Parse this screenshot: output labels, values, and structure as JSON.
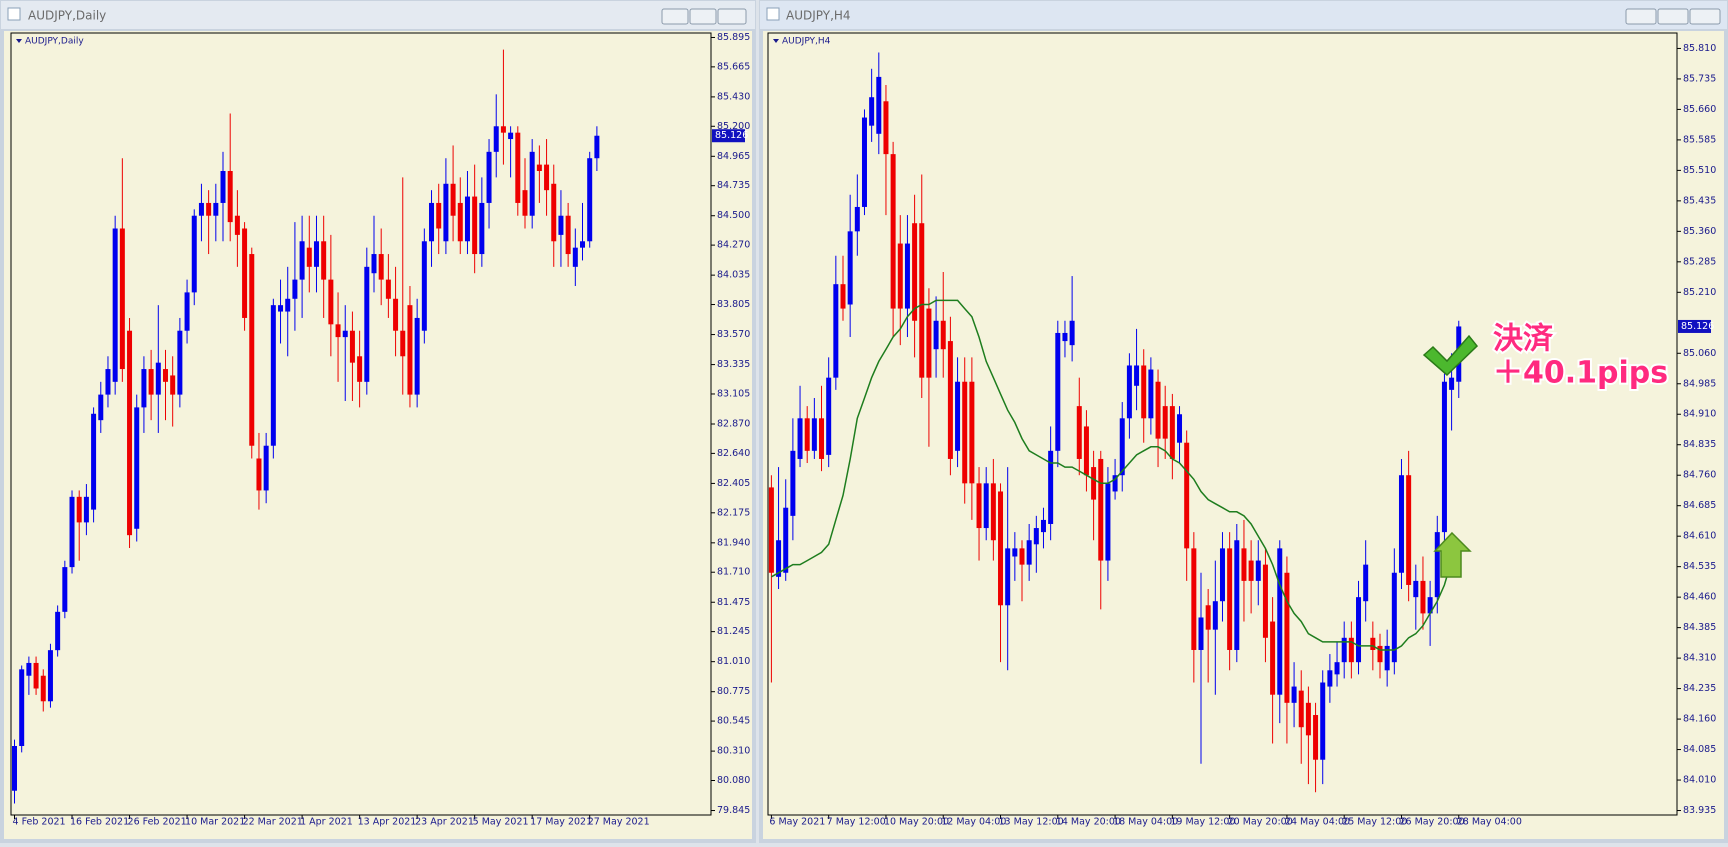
{
  "chart_data": [
    {
      "type": "candlestick",
      "title": "AUDJPY,Daily",
      "categories": [
        "4 Feb 2021",
        null,
        null,
        null,
        null,
        null,
        null,
        null,
        "16 Feb 2021",
        null,
        null,
        null,
        null,
        null,
        null,
        null,
        "26 Feb 2021",
        null,
        null,
        null,
        null,
        null,
        null,
        null,
        "10 Mar 2021",
        null,
        null,
        null,
        null,
        null,
        null,
        null,
        "22 Mar 2021",
        null,
        null,
        null,
        null,
        null,
        null,
        null,
        "1 Apr 2021",
        null,
        null,
        null,
        null,
        null,
        null,
        null,
        "13 Apr 2021",
        null,
        null,
        null,
        null,
        null,
        null,
        null,
        "23 Apr 2021",
        null,
        null,
        null,
        null,
        null,
        null,
        null,
        "5 May 2021",
        null,
        null,
        null,
        null,
        null,
        null,
        null,
        "17 May 2021",
        null,
        null,
        null,
        null,
        null,
        null,
        null,
        "27 May 2021",
        null
      ],
      "open": [
        80.0,
        80.35,
        80.9,
        81.0,
        80.9,
        80.7,
        81.1,
        81.4,
        81.75,
        82.3,
        82.1,
        82.2,
        82.9,
        83.1,
        83.2,
        84.4,
        83.6,
        82.05,
        83.0,
        83.3,
        83.1,
        83.3,
        83.25,
        83.1,
        83.6,
        83.9,
        84.5,
        84.6,
        84.5,
        84.6,
        84.85,
        84.5,
        84.4,
        84.2,
        82.6,
        82.35,
        82.7,
        83.75,
        83.75,
        83.85,
        84.0,
        84.25,
        84.1,
        84.3,
        84.0,
        83.65,
        83.55,
        83.6,
        83.4,
        83.2,
        84.05,
        84.2,
        84.0,
        83.85,
        83.6,
        83.8,
        83.1,
        83.6,
        84.3,
        84.6,
        84.3,
        84.75,
        84.6,
        84.3,
        84.65,
        84.2,
        84.6,
        85.0,
        85.2,
        85.1,
        85.15,
        84.7,
        84.5,
        84.9,
        84.9,
        84.75,
        84.35,
        84.5,
        84.1,
        84.25,
        84.3,
        84.95
      ],
      "high": [
        80.4,
        80.98,
        81.05,
        81.05,
        80.95,
        81.15,
        81.45,
        81.8,
        82.35,
        82.35,
        82.4,
        83.0,
        83.2,
        83.4,
        84.5,
        84.95,
        83.7,
        83.1,
        83.4,
        83.45,
        83.8,
        83.45,
        83.4,
        83.7,
        84.0,
        84.55,
        84.75,
        84.7,
        84.75,
        85.0,
        85.3,
        84.7,
        84.45,
        84.25,
        82.8,
        82.8,
        83.85,
        84.0,
        84.1,
        84.45,
        84.5,
        84.5,
        84.5,
        84.5,
        84.35,
        83.9,
        83.8,
        83.75,
        83.6,
        84.25,
        84.5,
        84.4,
        84.2,
        84.1,
        84.8,
        83.95,
        83.85,
        84.4,
        84.7,
        84.75,
        84.95,
        85.05,
        84.8,
        84.85,
        84.9,
        84.8,
        85.1,
        85.45,
        85.8,
        85.2,
        85.2,
        84.95,
        85.1,
        85.05,
        85.1,
        84.9,
        84.7,
        84.6,
        84.4,
        84.6,
        85.0,
        85.2
      ],
      "low": [
        79.9,
        80.3,
        80.75,
        80.75,
        80.62,
        80.65,
        81.05,
        81.35,
        81.7,
        81.8,
        82.0,
        82.1,
        82.8,
        83.0,
        83.1,
        83.2,
        81.9,
        81.95,
        82.8,
        82.9,
        82.8,
        82.9,
        82.85,
        83.0,
        83.5,
        83.8,
        84.3,
        84.2,
        84.3,
        84.3,
        84.3,
        84.1,
        83.6,
        82.6,
        82.2,
        82.25,
        82.6,
        83.5,
        83.4,
        83.6,
        83.7,
        83.9,
        83.9,
        83.7,
        83.4,
        83.2,
        83.05,
        83.05,
        83.0,
        83.1,
        83.9,
        83.8,
        83.7,
        83.4,
        83.1,
        83.0,
        83.0,
        83.5,
        84.1,
        84.2,
        84.2,
        84.3,
        84.2,
        84.2,
        84.05,
        84.1,
        84.4,
        84.8,
        84.9,
        84.8,
        84.5,
        84.4,
        84.4,
        84.6,
        84.5,
        84.1,
        84.1,
        84.1,
        83.95,
        84.15,
        84.25,
        84.85
      ],
      "close": [
        80.35,
        80.95,
        81.0,
        80.8,
        80.7,
        81.1,
        81.4,
        81.75,
        82.3,
        82.1,
        82.3,
        82.95,
        83.1,
        83.3,
        84.4,
        83.3,
        82.0,
        83.0,
        83.3,
        83.1,
        83.35,
        83.2,
        83.1,
        83.6,
        83.9,
        84.5,
        84.6,
        84.5,
        84.6,
        84.85,
        84.45,
        84.35,
        83.7,
        82.7,
        82.35,
        82.7,
        83.8,
        83.8,
        83.85,
        84.0,
        84.3,
        84.1,
        84.3,
        84.0,
        83.65,
        83.55,
        83.6,
        83.35,
        83.2,
        84.1,
        84.2,
        84.0,
        83.85,
        83.6,
        83.4,
        83.1,
        83.7,
        84.3,
        84.6,
        84.4,
        84.75,
        84.5,
        84.3,
        84.65,
        84.2,
        84.6,
        85.0,
        85.2,
        85.15,
        85.15,
        84.6,
        84.5,
        85.0,
        84.85,
        84.7,
        84.3,
        84.5,
        84.2,
        84.25,
        84.3,
        84.95,
        85.126
      ],
      "ylim": [
        79.81,
        85.93
      ],
      "yticks": [
        85.895,
        85.665,
        {
          "value": 85.43,
          "label": "85.430"
        },
        {
          "value": 85.2,
          "label": "85.200"
        },
        84.965,
        84.735,
        {
          "value": 84.5,
          "label": "84.500"
        },
        {
          "value": 84.27,
          "label": "84.270"
        },
        84.035,
        83.805,
        {
          "value": 83.57,
          "label": "83.570"
        },
        83.335,
        83.105,
        {
          "value": 82.87,
          "label": "82.870"
        },
        {
          "value": 82.64,
          "label": "82.640"
        },
        82.405,
        82.175,
        {
          "value": 81.94,
          "label": "81.940"
        },
        {
          "value": 81.71,
          "label": "81.710"
        },
        81.475,
        81.245,
        {
          "value": 81.01,
          "label": "81.010"
        },
        80.775,
        80.545,
        {
          "value": 80.31,
          "label": "80.310"
        },
        {
          "value": 80.08,
          "label": "80.080"
        },
        79.845
      ],
      "current_price": 85.126,
      "up_color": "#0000ee",
      "down_color": "#ee0000",
      "background": "#f5f3dc"
    },
    {
      "type": "candlestick",
      "title": "AUDJPY,H4",
      "categories": [
        "6 May 2021",
        null,
        null,
        null,
        null,
        null,
        null,
        null,
        "7 May 12:00",
        null,
        null,
        null,
        null,
        null,
        null,
        null,
        "10 May 20:00",
        null,
        null,
        null,
        null,
        null,
        null,
        null,
        "12 May 04:00",
        null,
        null,
        null,
        null,
        null,
        null,
        null,
        "13 May 12:00",
        null,
        null,
        null,
        null,
        null,
        null,
        null,
        "14 May 20:00",
        null,
        null,
        null,
        null,
        null,
        null,
        null,
        "18 May 04:00",
        null,
        null,
        null,
        null,
        null,
        null,
        null,
        "19 May 12:00",
        null,
        null,
        null,
        null,
        null,
        null,
        null,
        "20 May 20:00",
        null,
        null,
        null,
        null,
        null,
        null,
        null,
        "24 May 04:00",
        null,
        null,
        null,
        null,
        null,
        null,
        null,
        "25 May 12:00",
        null,
        null,
        null,
        null,
        null,
        null,
        null,
        "26 May 20:00",
        null,
        null,
        null,
        null,
        null,
        null,
        null,
        "28 May 04:00"
      ],
      "open": [
        84.73,
        84.51,
        84.52,
        84.66,
        84.8,
        84.9,
        84.82,
        84.9,
        84.81,
        85.0,
        85.23,
        85.18,
        85.36,
        85.42,
        85.62,
        85.6,
        85.68,
        85.55,
        85.33,
        85.17,
        85.38,
        85.38,
        85.17,
        85.07,
        85.14,
        85.09,
        84.82,
        84.99,
        84.99,
        84.74,
        84.63,
        84.74,
        84.72,
        84.44,
        84.56,
        84.58,
        84.54,
        84.59,
        84.62,
        84.64,
        84.82,
        85.09,
        85.08,
        84.93,
        84.88,
        84.78,
        84.8,
        84.55,
        84.72,
        84.76,
        84.9,
        84.98,
        85.03,
        84.9,
        84.99,
        84.93,
        84.93,
        84.84,
        84.84,
        84.58,
        84.33,
        84.44,
        84.38,
        84.45,
        84.58,
        84.33,
        84.58,
        84.55,
        84.5,
        84.54,
        84.4,
        84.22,
        84.52,
        84.2,
        84.23,
        84.2,
        84.17,
        84.06,
        84.24,
        84.27,
        84.3,
        84.36,
        84.3,
        84.45,
        84.36,
        84.34,
        84.28,
        84.3,
        84.52,
        84.76,
        84.46,
        84.5,
        84.42,
        84.46,
        84.62,
        84.97,
        84.99
      ],
      "high": [
        84.76,
        84.78,
        84.75,
        84.9,
        84.98,
        84.93,
        84.95,
        84.98,
        85.05,
        85.3,
        85.3,
        85.45,
        85.5,
        85.66,
        85.76,
        85.8,
        85.72,
        85.58,
        85.4,
        85.4,
        85.45,
        85.5,
        85.22,
        85.2,
        85.26,
        85.15,
        85.05,
        85.05,
        85.05,
        84.78,
        84.78,
        84.8,
        84.74,
        84.78,
        84.62,
        84.6,
        84.64,
        84.66,
        84.68,
        84.88,
        85.14,
        85.14,
        85.25,
        85.0,
        84.92,
        84.82,
        84.82,
        84.78,
        84.8,
        84.94,
        85.06,
        85.12,
        85.07,
        85.05,
        85.02,
        84.98,
        84.96,
        84.93,
        84.87,
        84.62,
        84.52,
        84.48,
        84.55,
        84.62,
        84.62,
        84.64,
        84.65,
        84.6,
        84.6,
        84.58,
        84.46,
        84.6,
        84.56,
        84.3,
        84.28,
        84.24,
        84.2,
        84.28,
        84.32,
        84.35,
        84.4,
        84.4,
        84.5,
        84.6,
        84.4,
        84.37,
        84.38,
        84.58,
        84.8,
        84.82,
        84.54,
        84.56,
        84.5,
        84.66,
        85.01,
        85.06,
        85.14
      ],
      "low": [
        84.25,
        84.48,
        84.5,
        84.6,
        84.78,
        84.79,
        84.8,
        84.77,
        84.78,
        84.97,
        85.14,
        85.1,
        85.3,
        85.4,
        85.58,
        85.55,
        85.4,
        85.1,
        85.08,
        85.1,
        85.05,
        84.95,
        84.83,
        85.0,
        85.0,
        84.76,
        84.78,
        84.69,
        84.65,
        84.55,
        84.6,
        84.55,
        84.3,
        84.28,
        84.5,
        84.45,
        84.5,
        84.52,
        84.58,
        84.6,
        84.78,
        85.05,
        85.04,
        84.76,
        84.72,
        84.6,
        84.43,
        84.5,
        84.7,
        84.72,
        84.85,
        84.92,
        84.84,
        84.86,
        84.78,
        84.8,
        84.75,
        84.79,
        84.5,
        84.25,
        84.05,
        84.25,
        84.22,
        84.4,
        84.28,
        84.3,
        84.4,
        84.42,
        84.44,
        84.3,
        84.1,
        84.15,
        84.1,
        84.14,
        84.05,
        84.0,
        83.98,
        84.0,
        84.2,
        84.24,
        84.26,
        84.26,
        84.27,
        84.4,
        84.28,
        84.26,
        84.24,
        84.27,
        84.48,
        84.45,
        84.38,
        84.38,
        84.34,
        84.42,
        84.58,
        84.87,
        84.95
      ],
      "close": [
        84.52,
        84.6,
        84.68,
        84.82,
        84.9,
        84.82,
        84.9,
        84.8,
        85.0,
        85.23,
        85.17,
        85.36,
        85.42,
        85.64,
        85.69,
        85.74,
        85.55,
        85.17,
        85.17,
        85.33,
        85.14,
        85.0,
        85.0,
        85.14,
        85.07,
        84.8,
        84.99,
        84.74,
        84.74,
        84.63,
        84.74,
        84.6,
        84.44,
        84.58,
        84.58,
        84.54,
        84.6,
        84.63,
        84.65,
        84.82,
        85.11,
        85.11,
        85.14,
        84.8,
        84.76,
        84.7,
        84.55,
        84.74,
        84.76,
        84.9,
        85.03,
        85.03,
        84.9,
        85.02,
        84.85,
        84.85,
        84.8,
        84.91,
        84.58,
        84.33,
        84.41,
        84.38,
        84.45,
        84.58,
        84.33,
        84.6,
        84.5,
        84.5,
        84.55,
        84.36,
        84.22,
        84.58,
        84.2,
        84.24,
        84.14,
        84.12,
        84.06,
        84.25,
        84.28,
        84.3,
        84.36,
        84.3,
        84.46,
        84.54,
        84.33,
        84.3,
        84.34,
        84.52,
        84.76,
        84.49,
        84.5,
        84.42,
        84.46,
        84.62,
        84.99,
        85.0,
        85.126
      ],
      "series": [
        {
          "color": "#1e7d1e",
          "values": [
            84.51,
            84.52,
            84.53,
            84.54,
            84.54,
            84.55,
            84.56,
            84.57,
            84.59,
            84.65,
            84.71,
            84.8,
            84.9,
            84.95,
            85.0,
            85.04,
            85.07,
            85.1,
            85.12,
            85.15,
            85.17,
            85.18,
            85.18,
            85.19,
            85.19,
            85.19,
            85.19,
            85.17,
            85.15,
            85.1,
            85.04,
            85.0,
            84.96,
            84.92,
            84.89,
            84.85,
            84.82,
            84.81,
            84.8,
            84.79,
            84.79,
            84.78,
            84.78,
            84.77,
            84.76,
            84.75,
            84.74,
            84.74,
            84.75,
            84.77,
            84.79,
            84.81,
            84.82,
            84.83,
            84.83,
            84.82,
            84.8,
            84.79,
            84.77,
            84.75,
            84.72,
            84.7,
            84.69,
            84.68,
            84.67,
            84.67,
            84.66,
            84.64,
            84.61,
            84.58,
            84.54,
            84.49,
            84.45,
            84.42,
            84.4,
            84.37,
            84.36,
            84.35,
            84.35,
            84.35,
            84.35,
            84.35,
            84.34,
            84.34,
            84.34,
            84.33,
            84.33,
            84.33,
            84.34,
            84.36,
            84.37,
            84.39,
            84.42,
            84.45,
            84.49,
            84.55,
            84.57
          ]
        }
      ],
      "ylim": [
        83.924,
        85.848
      ],
      "yticks": [
        {
          "value": 85.81,
          "label": "85.810"
        },
        85.735,
        {
          "value": 85.66,
          "label": "85.660"
        },
        85.585,
        {
          "value": 85.51,
          "label": "85.510"
        },
        85.435,
        {
          "value": 85.36,
          "label": "85.360"
        },
        85.285,
        {
          "value": 85.21,
          "label": "85.210"
        },
        {
          "value": 85.06,
          "label": "85.060"
        },
        84.985,
        {
          "value": 84.91,
          "label": "84.910"
        },
        84.835,
        {
          "value": 84.76,
          "label": "84.760"
        },
        84.685,
        {
          "value": 84.61,
          "label": "84.610"
        },
        84.535,
        {
          "value": 84.46,
          "label": "84.460"
        },
        84.385,
        {
          "value": 84.31,
          "label": "84.310"
        },
        84.235,
        {
          "value": 84.16,
          "label": "84.160"
        },
        84.085,
        {
          "value": 84.01,
          "label": "84.010"
        },
        83.935
      ],
      "current_price": 85.126,
      "annotation": [
        "決済",
        "＋40.1pips"
      ],
      "up_color": "#0000ee",
      "down_color": "#ee0000",
      "background": "#f5f3dc"
    }
  ]
}
